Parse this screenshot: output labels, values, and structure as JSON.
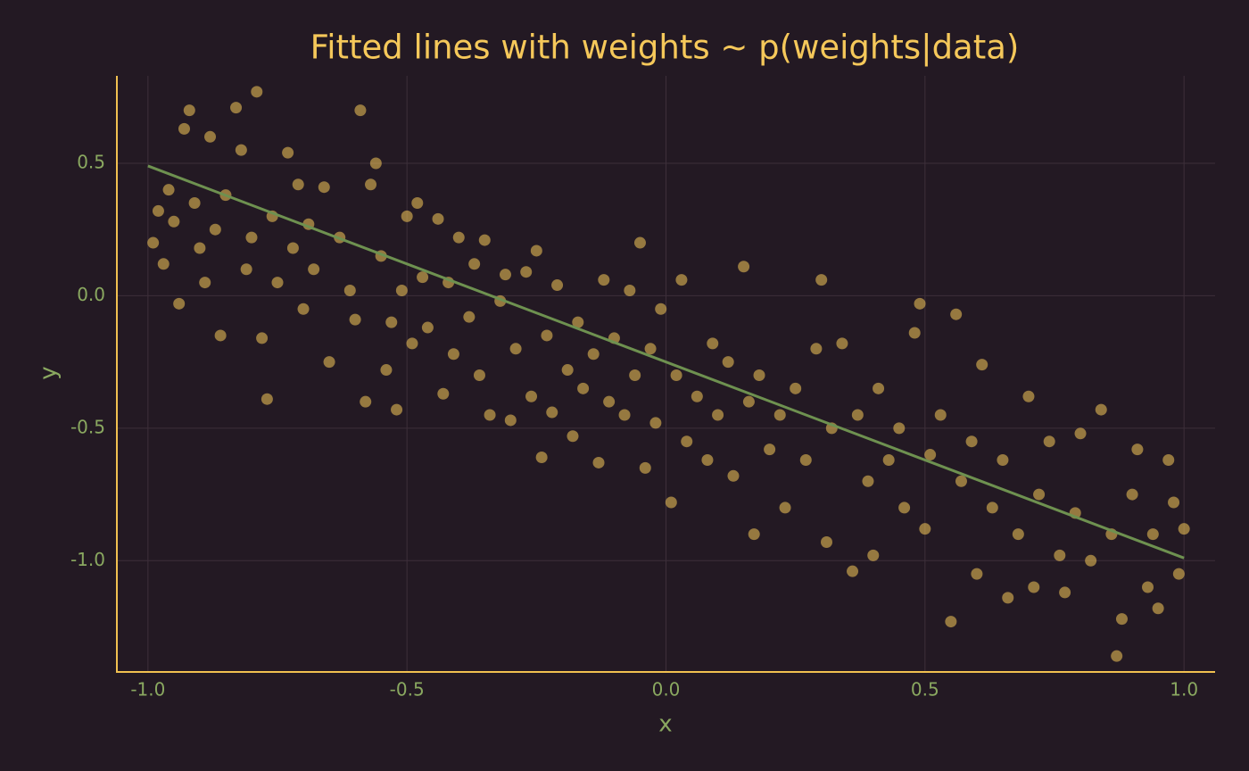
{
  "chart_data": {
    "type": "scatter",
    "title": "Fitted lines with weights ~ p(weights|data)",
    "x_label": "x",
    "y_label": "y",
    "xlim": [
      -1.06,
      1.06
    ],
    "ylim": [
      -1.42,
      0.83
    ],
    "xticks": [
      {
        "value": -1.0,
        "label": "-1.0"
      },
      -0.5,
      {
        "value": 0.0,
        "label": "0.0"
      },
      0.5,
      {
        "value": 1.0,
        "label": "1.0"
      }
    ],
    "yticks": [
      {
        "value": -1.0,
        "label": "-1.0"
      },
      -0.5,
      {
        "value": 0.0,
        "label": "0.0"
      },
      0.5
    ],
    "grid": true,
    "series": [
      {
        "type": "scatter",
        "color": "#f5c85a",
        "x": [
          -0.99,
          -0.98,
          -0.97,
          -0.96,
          -0.95,
          -0.94,
          -0.93,
          -0.92,
          -0.91,
          -0.9,
          -0.89,
          -0.88,
          -0.87,
          -0.86,
          -0.85,
          -0.83,
          -0.82,
          -0.81,
          -0.8,
          -0.79,
          -0.78,
          -0.77,
          -0.76,
          -0.75,
          -0.73,
          -0.72,
          -0.71,
          -0.7,
          -0.69,
          -0.68,
          -0.66,
          -0.65,
          -0.63,
          -0.61,
          -0.6,
          -0.59,
          -0.58,
          -0.57,
          -0.56,
          -0.55,
          -0.54,
          -0.53,
          -0.52,
          -0.51,
          -0.5,
          -0.49,
          -0.48,
          -0.47,
          -0.46,
          -0.44,
          -0.43,
          -0.42,
          -0.41,
          -0.4,
          -0.38,
          -0.37,
          -0.36,
          -0.35,
          -0.34,
          -0.32,
          -0.31,
          -0.3,
          -0.29,
          -0.27,
          -0.26,
          -0.25,
          -0.24,
          -0.23,
          -0.22,
          -0.21,
          -0.19,
          -0.18,
          -0.17,
          -0.16,
          -0.14,
          -0.13,
          -0.12,
          -0.11,
          -0.1,
          -0.08,
          -0.07,
          -0.06,
          -0.05,
          -0.04,
          -0.03,
          -0.02,
          -0.01,
          0.01,
          0.02,
          0.03,
          0.04,
          0.06,
          0.08,
          0.09,
          0.1,
          0.12,
          0.13,
          0.15,
          0.16,
          0.17,
          0.18,
          0.2,
          0.22,
          0.23,
          0.25,
          0.27,
          0.29,
          0.3,
          0.31,
          0.32,
          0.34,
          0.36,
          0.37,
          0.39,
          0.4,
          0.41,
          0.43,
          0.45,
          0.46,
          0.48,
          0.49,
          0.5,
          0.51,
          0.53,
          0.55,
          0.56,
          0.57,
          0.59,
          0.6,
          0.61,
          0.63,
          0.65,
          0.66,
          0.68,
          0.7,
          0.71,
          0.72,
          0.74,
          0.76,
          0.77,
          0.79,
          0.8,
          0.82,
          0.84,
          0.86,
          0.87,
          0.88,
          0.9,
          0.91,
          0.93,
          0.94,
          0.95,
          0.97,
          0.98,
          0.99,
          1.0
        ],
        "values": [
          0.2,
          0.32,
          0.12,
          0.4,
          0.28,
          -0.03,
          0.63,
          0.7,
          0.35,
          0.18,
          0.05,
          0.6,
          0.25,
          -0.15,
          0.38,
          0.71,
          0.55,
          0.1,
          0.22,
          0.77,
          -0.16,
          -0.39,
          0.3,
          0.05,
          0.54,
          0.18,
          0.42,
          -0.05,
          0.27,
          0.1,
          0.41,
          -0.25,
          0.22,
          0.02,
          -0.09,
          0.7,
          -0.4,
          0.42,
          0.5,
          0.15,
          -0.28,
          -0.1,
          -0.43,
          0.02,
          0.3,
          -0.18,
          0.35,
          0.07,
          -0.12,
          0.29,
          -0.37,
          0.05,
          -0.22,
          0.22,
          -0.08,
          0.12,
          -0.3,
          0.21,
          -0.45,
          -0.02,
          0.08,
          -0.47,
          -0.2,
          0.09,
          -0.38,
          0.17,
          -0.61,
          -0.15,
          -0.44,
          0.04,
          -0.28,
          -0.53,
          -0.1,
          -0.35,
          -0.22,
          -0.63,
          0.06,
          -0.4,
          -0.16,
          -0.45,
          0.02,
          -0.3,
          0.2,
          -0.65,
          -0.2,
          -0.48,
          -0.05,
          -0.78,
          -0.3,
          0.06,
          -0.55,
          -0.38,
          -0.62,
          -0.18,
          -0.45,
          -0.25,
          -0.68,
          0.11,
          -0.4,
          -0.9,
          -0.3,
          -0.58,
          -0.45,
          -0.8,
          -0.35,
          -0.62,
          -0.2,
          0.06,
          -0.93,
          -0.5,
          -0.18,
          -1.04,
          -0.45,
          -0.7,
          -0.98,
          -0.35,
          -0.62,
          -0.5,
          -0.8,
          -0.14,
          -0.03,
          -0.88,
          -0.6,
          -0.45,
          -1.23,
          -0.07,
          -0.7,
          -0.55,
          -1.05,
          -0.26,
          -0.8,
          -0.62,
          -1.14,
          -0.9,
          -0.38,
          -1.1,
          -0.75,
          -0.55,
          -0.98,
          -1.12,
          -0.82,
          -0.52,
          -1.0,
          -0.43,
          -0.9,
          -1.36,
          -1.22,
          -0.75,
          -0.58,
          -1.1,
          -0.9,
          -1.18,
          -0.62,
          -0.78,
          -1.05,
          -0.88
        ]
      },
      {
        "type": "line",
        "color": "#6e9150",
        "x": [
          -1.0,
          1.0
        ],
        "values": [
          0.49,
          -0.99
        ]
      }
    ]
  }
}
